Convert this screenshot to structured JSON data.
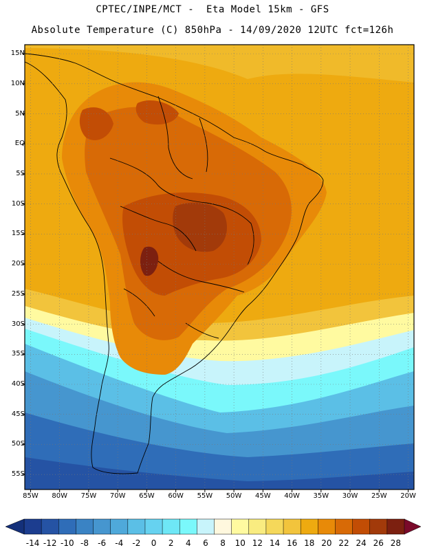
{
  "header": {
    "line1": "CPTEC/INPE/MCT -  Eta Model 15km - GFS",
    "line2": "Absolute Temperature (C) 850hPa - 14/09/2020 12UTC fct=126h"
  },
  "latitude_labels": [
    "15N",
    "10N",
    "5N",
    "EQ",
    "5S",
    "10S",
    "15S",
    "20S",
    "25S",
    "30S",
    "35S",
    "40S",
    "45S",
    "50S",
    "55S"
  ],
  "longitude_labels": [
    "85W",
    "80W",
    "75W",
    "70W",
    "65W",
    "60W",
    "55W",
    "50W",
    "45W",
    "40W",
    "35W",
    "30W",
    "25W",
    "20W"
  ],
  "colorbar": {
    "labels": [
      "-14",
      "-12",
      "-10",
      "-8",
      "-6",
      "-4",
      "-2",
      "0",
      "2",
      "4",
      "6",
      "8",
      "10",
      "12",
      "14",
      "16",
      "18",
      "20",
      "22",
      "24",
      "26",
      "28"
    ],
    "colors": [
      "#1c3d8f",
      "#2553a4",
      "#2f6db8",
      "#3a83c4",
      "#4696cf",
      "#4fa9da",
      "#5bbfe6",
      "#66d2f0",
      "#6ee7f6",
      "#7af8fb",
      "#c8f4fb",
      "#fff8de",
      "#fffaa0",
      "#f9ec80",
      "#f5d85a",
      "#f2c43c",
      "#eeaa10",
      "#e88a08",
      "#d86a06",
      "#c24d05",
      "#a23a0a",
      "#7c2010"
    ],
    "under_color": "#14307a",
    "over_color": "#7a0a2a"
  },
  "grid": {
    "lat_min": -57.5,
    "lat_max": 16.5,
    "lon_min": -86,
    "lon_max": -19
  }
}
